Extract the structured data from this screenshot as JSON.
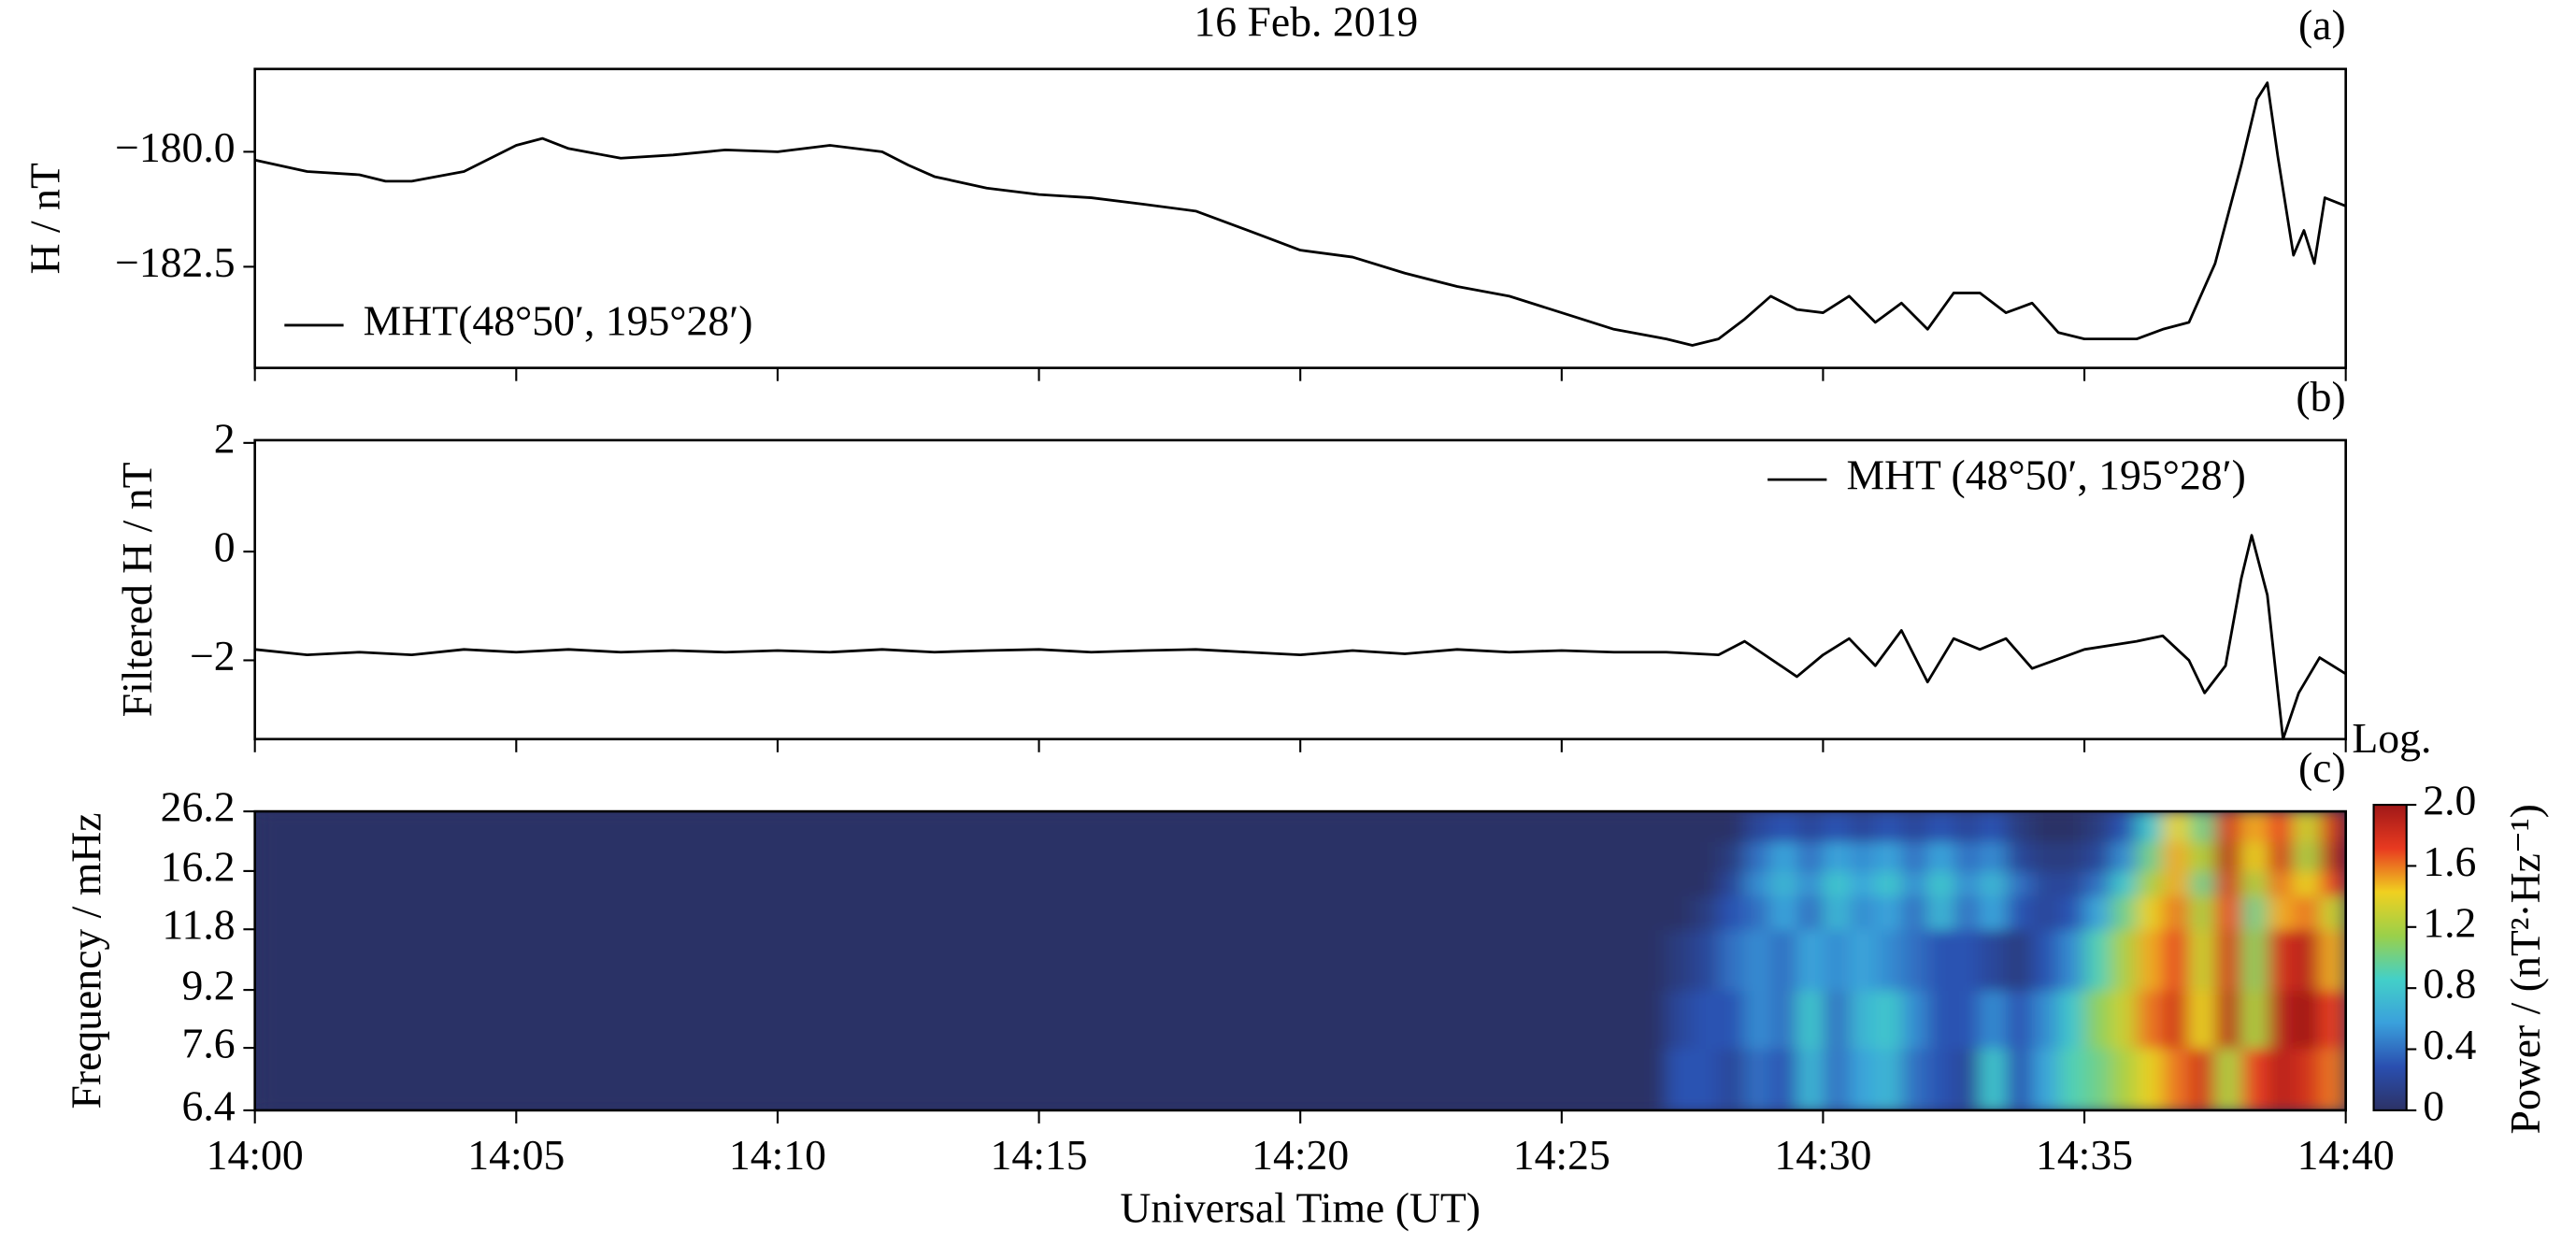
{
  "chart_data": [
    {
      "type": "line",
      "title": "16 Feb. 2019",
      "panel_label": "(a)",
      "ylabel": "H / nT",
      "xlim": [
        0,
        40
      ],
      "xticks": [
        0,
        5,
        10,
        15,
        20,
        25,
        30,
        35,
        40
      ],
      "show_xticklabels": false,
      "ylim": [
        -184.7,
        -178.2
      ],
      "yticks": [
        {
          "value": -180,
          "label": "−180.0"
        },
        {
          "value": -182.5,
          "label": "−182.5"
        }
      ],
      "legend": "lower left",
      "x": [
        0,
        1,
        2,
        2.5,
        3,
        4,
        5,
        5.5,
        6,
        7,
        8,
        9,
        10,
        11,
        12,
        12.5,
        13,
        14,
        15,
        16,
        17,
        18,
        19,
        20,
        21,
        22,
        23,
        24,
        25,
        26,
        27,
        27.5,
        28,
        28.5,
        29,
        29.5,
        30,
        30.5,
        31,
        31.5,
        32,
        32.5,
        33,
        33.5,
        34,
        34.5,
        35,
        36,
        36.5,
        37,
        37.5,
        38,
        38.3,
        38.5,
        38.7,
        39,
        39.2,
        39.4,
        39.6,
        40
      ],
      "series": [
        {
          "name": "MHT(48°50′, 195°28′)",
          "color": "#000000",
          "values": [
            -180.18,
            -180.43,
            -180.5,
            -180.64,
            -180.64,
            -180.43,
            -179.86,
            -179.71,
            -179.93,
            -180.14,
            -180.07,
            -179.96,
            -180.0,
            -179.86,
            -180.0,
            -180.29,
            -180.54,
            -180.79,
            -180.93,
            -181.0,
            -181.14,
            -181.29,
            -181.71,
            -182.14,
            -182.29,
            -182.64,
            -182.93,
            -183.14,
            -183.5,
            -183.86,
            -184.07,
            -184.21,
            -184.07,
            -183.64,
            -183.14,
            -183.43,
            -183.5,
            -183.14,
            -183.71,
            -183.29,
            -183.86,
            -183.07,
            -183.07,
            -183.5,
            -183.29,
            -183.93,
            -184.07,
            -184.07,
            -183.86,
            -183.71,
            -182.43,
            -180.29,
            -178.86,
            -178.5,
            -180.1,
            -182.25,
            -181.71,
            -182.43,
            -181.0,
            -181.18
          ]
        }
      ]
    },
    {
      "type": "line",
      "panel_label": "(b)",
      "ylabel": "Filtered H / nT",
      "xlim": [
        0,
        40
      ],
      "xticks": [
        0,
        5,
        10,
        15,
        20,
        25,
        30,
        35,
        40
      ],
      "show_xticklabels": false,
      "ylim": [
        -3.45,
        2.05
      ],
      "yticks": [
        2,
        0,
        {
          "value": -2,
          "label": "−2"
        }
      ],
      "legend": "upper right",
      "x": [
        0,
        1,
        2,
        3,
        4,
        5,
        6,
        7,
        8,
        9,
        10,
        11,
        12,
        13,
        14,
        15,
        16,
        17,
        18,
        19,
        20,
        21,
        22,
        23,
        24,
        25,
        26,
        27,
        28,
        28.5,
        29.5,
        30,
        30.5,
        31,
        31.5,
        32,
        32.5,
        33,
        33.5,
        34,
        35,
        36,
        36.5,
        37,
        37.3,
        37.7,
        38,
        38.2,
        38.5,
        38.8,
        39.1,
        39.5,
        40
      ],
      "series": [
        {
          "name": "MHT (48°50′, 195°28′)",
          "color": "#000000",
          "values": [
            -1.8,
            -1.9,
            -1.85,
            -1.9,
            -1.8,
            -1.85,
            -1.8,
            -1.85,
            -1.82,
            -1.85,
            -1.82,
            -1.85,
            -1.8,
            -1.85,
            -1.82,
            -1.8,
            -1.85,
            -1.82,
            -1.8,
            -1.85,
            -1.9,
            -1.82,
            -1.88,
            -1.8,
            -1.85,
            -1.82,
            -1.85,
            -1.85,
            -1.9,
            -1.65,
            -2.3,
            -1.9,
            -1.6,
            -2.1,
            -1.45,
            -2.4,
            -1.6,
            -1.8,
            -1.6,
            -2.15,
            -1.8,
            -1.65,
            -1.55,
            -2.0,
            -2.6,
            -2.1,
            -0.5,
            0.3,
            -0.8,
            -3.45,
            -2.6,
            -1.95,
            -2.25
          ]
        }
      ]
    },
    {
      "type": "heatmap",
      "panel_label": "(c)",
      "ylabel": "Frequency / mHz",
      "xlabel": "Universal Time (UT)",
      "xlim": [
        0,
        40
      ],
      "xticks": [
        {
          "value": 0,
          "label": "14:00"
        },
        {
          "value": 5,
          "label": "14:05"
        },
        {
          "value": 10,
          "label": "14:10"
        },
        {
          "value": 15,
          "label": "14:15"
        },
        {
          "value": 20,
          "label": "14:20"
        },
        {
          "value": 25,
          "label": "14:25"
        },
        {
          "value": 30,
          "label": "14:30"
        },
        {
          "value": 35,
          "label": "14:35"
        },
        {
          "value": 40,
          "label": "14:40"
        }
      ],
      "show_xticklabels": true,
      "yscale": "reciprocal",
      "ylim": [
        6.4,
        26.2
      ],
      "yticks": [
        6.4,
        7.6,
        9.2,
        11.8,
        16.2,
        26.2
      ],
      "xbins": [
        0,
        27,
        27.5,
        28,
        28.5,
        29,
        29.5,
        30,
        30.5,
        31,
        31.5,
        32,
        32.5,
        33,
        33.5,
        34,
        34.5,
        35,
        35.5,
        36,
        36.5,
        37,
        37.5,
        38,
        38.5,
        39,
        39.5,
        40
      ],
      "ybins": [
        6.4,
        7.6,
        9.2,
        11.8,
        14,
        16.2,
        20,
        26.2
      ],
      "z": [
        [
          0,
          0.3,
          0.3,
          0.2,
          0.4,
          0.3,
          0.7,
          0.4,
          0.6,
          0.7,
          0.4,
          0.3,
          0.2,
          0.8,
          0.3,
          0.6,
          0.9,
          1.0,
          1.2,
          1.4,
          1.6,
          1.8,
          1.2,
          1.7,
          1.9,
          1.8,
          1.6
        ],
        [
          0,
          0.2,
          0.3,
          0.3,
          0.5,
          0.4,
          0.8,
          0.4,
          0.7,
          0.8,
          0.5,
          0.3,
          0.3,
          0.5,
          0.3,
          0.5,
          0.8,
          1.1,
          1.3,
          1.6,
          1.8,
          1.4,
          1.9,
          1.2,
          1.9,
          2.0,
          1.7
        ],
        [
          0,
          0.1,
          0.2,
          0.4,
          0.5,
          0.4,
          0.6,
          0.5,
          0.6,
          0.5,
          0.4,
          0.3,
          0.3,
          0.2,
          0.1,
          0.3,
          0.5,
          0.9,
          1.2,
          1.5,
          1.7,
          1.3,
          1.8,
          1.1,
          1.8,
          1.9,
          1.5
        ],
        [
          0,
          0,
          0.1,
          0.3,
          0.4,
          0.6,
          0.4,
          0.7,
          0.5,
          0.6,
          0.4,
          0.7,
          0.4,
          0.6,
          0.3,
          0.2,
          0.3,
          0.6,
          1.0,
          1.4,
          1.6,
          1.2,
          1.7,
          1.0,
          1.5,
          1.6,
          1.3
        ],
        [
          0,
          0,
          0,
          0.2,
          0.5,
          0.7,
          0.5,
          0.8,
          0.6,
          0.8,
          0.5,
          0.8,
          0.5,
          0.7,
          0.4,
          0.2,
          0.2,
          0.4,
          0.8,
          1.2,
          1.5,
          1.0,
          1.8,
          1.2,
          1.6,
          1.4,
          1.7
        ],
        [
          0,
          0,
          0,
          0.1,
          0.4,
          0.6,
          0.4,
          0.6,
          0.5,
          0.6,
          0.4,
          0.6,
          0.4,
          0.5,
          0.2,
          0.1,
          0.1,
          0.2,
          0.5,
          1.0,
          1.5,
          1.2,
          1.9,
          1.4,
          1.8,
          1.2,
          1.9
        ],
        [
          0,
          0,
          0,
          0,
          0.2,
          0.3,
          0.2,
          0.3,
          0.2,
          0.3,
          0.2,
          0.3,
          0.2,
          0.3,
          0.1,
          0,
          0,
          0.1,
          0.3,
          0.8,
          1.4,
          1.0,
          1.8,
          1.5,
          1.7,
          1.3,
          1.8
        ]
      ],
      "zlim": [
        0,
        2
      ],
      "colormap": [
        "#2c3266",
        "#2a4fb0",
        "#3aa0dc",
        "#43d0c8",
        "#9ad04a",
        "#f0d020",
        "#e83a20",
        "#a01818"
      ],
      "colorbar_title": "Log.",
      "colorbar_label": "Power / (nT²·Hz⁻¹)",
      "colorbar_ticks": [
        0,
        0.4,
        0.8,
        1.2,
        1.6,
        {
          "value": 2,
          "label": "2.0"
        }
      ]
    }
  ]
}
